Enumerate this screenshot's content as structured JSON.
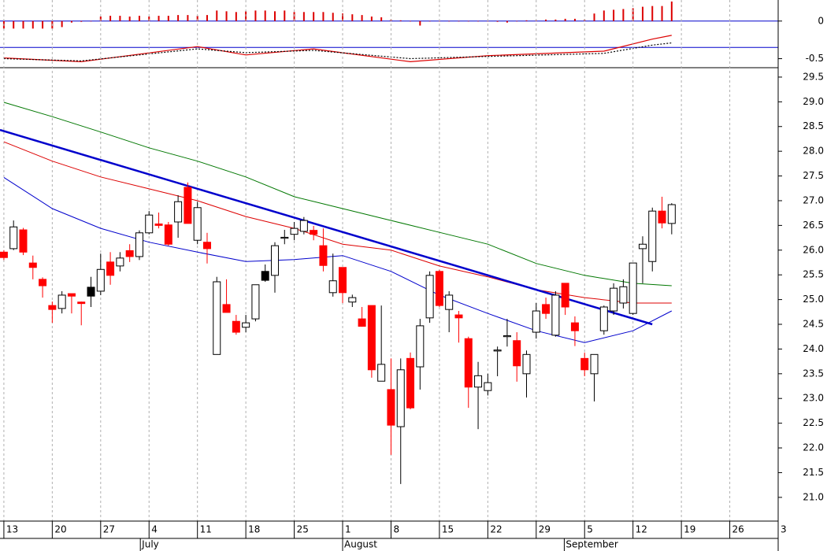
{
  "chart_data": [
    {
      "type": "macd",
      "xlim": [
        -0.4,
        80
      ],
      "ylim": [
        -0.62,
        0.28
      ],
      "yticks": [
        0,
        -0.5
      ],
      "hlines": [
        0,
        -0.35
      ],
      "hline_color": "#0000cc",
      "histogram": {
        "color": "#dd0000",
        "x": [
          0,
          1,
          2,
          3,
          4,
          5,
          6,
          7,
          8,
          9,
          10,
          11,
          12,
          13,
          14,
          15,
          16,
          17,
          18,
          19,
          20,
          21,
          22,
          23,
          24,
          25,
          26,
          27,
          28,
          29,
          30,
          31,
          32,
          33,
          34,
          35,
          36,
          37,
          38,
          39,
          40,
          41,
          42,
          43,
          44,
          45,
          46,
          47,
          48,
          49,
          50,
          51,
          52,
          53,
          54,
          55,
          56,
          57,
          58,
          59,
          60,
          61,
          62,
          63,
          64,
          65,
          66,
          67,
          68,
          69
        ],
        "values": [
          -0.1,
          -0.1,
          -0.1,
          -0.1,
          -0.1,
          -0.1,
          -0.08,
          -0.02,
          -0.01,
          0,
          0.06,
          0.07,
          0.07,
          0.06,
          0.07,
          0.06,
          0.07,
          0.07,
          0.08,
          0.08,
          0.07,
          0.08,
          0.14,
          0.13,
          0.12,
          0.13,
          0.14,
          0.14,
          0.13,
          0.14,
          0.12,
          0.12,
          0.12,
          0.12,
          0.11,
          0.1,
          0.09,
          0.08,
          0.06,
          0.05,
          0.02,
          0.01,
          0,
          -0.06,
          0,
          0,
          0,
          0,
          0,
          0,
          0,
          -0.01,
          -0.02,
          0,
          0.01,
          0.01,
          0.02,
          0.02,
          0.03,
          0.03,
          0.02,
          0.1,
          0.14,
          0.15,
          0.16,
          0.17,
          0.19,
          0.2,
          0.2,
          0.26
        ]
      },
      "series": [
        {
          "color": "#dd0000",
          "dash": false,
          "x": [
            0,
            8,
            20,
            25,
            32,
            42,
            50,
            62,
            67,
            69
          ],
          "values": [
            -0.49,
            -0.54,
            -0.34,
            -0.45,
            -0.37,
            -0.54,
            -0.46,
            -0.4,
            -0.24,
            -0.19
          ]
        },
        {
          "color": "#000000",
          "dash": true,
          "x": [
            0,
            8,
            20,
            25,
            32,
            42,
            50,
            62,
            67,
            69
          ],
          "values": [
            -0.5,
            -0.53,
            -0.37,
            -0.42,
            -0.39,
            -0.5,
            -0.47,
            -0.43,
            -0.32,
            -0.29
          ]
        }
      ]
    },
    {
      "type": "candlestick",
      "xlim": [
        -0.4,
        80
      ],
      "ylim": [
        20.52,
        29.69
      ],
      "yticks": [
        {
          "value": 21,
          "label": "21.0"
        },
        {
          "value": 21.5,
          "label": "21.5"
        },
        {
          "value": 22,
          "label": "22.0"
        },
        {
          "value": 22.5,
          "label": "22.5"
        },
        {
          "value": 23,
          "label": "23.0"
        },
        {
          "value": 23.5,
          "label": "23.5"
        },
        {
          "value": 24,
          "label": "24.0"
        },
        {
          "value": 24.5,
          "label": "24.5"
        },
        {
          "value": 25,
          "label": "25.0"
        },
        {
          "value": 25.5,
          "label": "25.5"
        },
        {
          "value": 26,
          "label": "26.0"
        },
        {
          "value": 26.5,
          "label": "26.5"
        },
        {
          "value": 27,
          "label": "27.0"
        },
        {
          "value": 27.5,
          "label": "27.5"
        },
        {
          "value": 28,
          "label": "28.0"
        },
        {
          "value": 28.5,
          "label": "28.5"
        },
        {
          "value": 29,
          "label": "29.0"
        },
        {
          "value": 29.5,
          "label": "29.5"
        }
      ],
      "xticks": [
        {
          "value": 0,
          "label": "13"
        },
        {
          "value": 5,
          "label": "20"
        },
        {
          "value": 10,
          "label": "27"
        },
        {
          "value": 15,
          "label": "4"
        },
        {
          "value": 20,
          "label": "11"
        },
        {
          "value": 25,
          "label": "18"
        },
        {
          "value": 30,
          "label": "25"
        },
        {
          "value": 35,
          "label": "1"
        },
        {
          "value": 40,
          "label": "8"
        },
        {
          "value": 45,
          "label": "15"
        },
        {
          "value": 50,
          "label": "22"
        },
        {
          "value": 55,
          "label": "29"
        },
        {
          "value": 60,
          "label": "5"
        },
        {
          "value": 65,
          "label": "12"
        },
        {
          "value": 70,
          "label": "19"
        },
        {
          "value": 75,
          "label": "26"
        },
        {
          "value": 80,
          "label": "3"
        }
      ],
      "month_ticks": [
        {
          "value": 14.1,
          "label": "July"
        },
        {
          "value": 35,
          "label": "August"
        },
        {
          "value": 57.9,
          "label": "September"
        }
      ],
      "grid": true,
      "x": [
        0,
        1,
        2,
        3,
        4,
        5,
        6,
        7,
        8,
        9,
        10,
        11,
        12,
        13,
        14,
        15,
        16,
        17,
        18,
        19,
        20,
        21,
        22,
        23,
        24,
        25,
        26,
        27,
        28,
        29,
        30,
        31,
        32,
        33,
        34,
        35,
        36,
        37,
        38,
        39,
        40,
        41,
        42,
        43,
        44,
        45,
        46,
        47,
        48,
        49,
        50,
        51,
        52,
        53,
        54,
        55,
        56,
        57,
        58,
        59,
        60,
        61,
        62,
        63,
        64,
        65,
        66,
        67,
        68,
        69
      ],
      "open": [
        25.96,
        26.03,
        26.41,
        25.74,
        25.41,
        24.88,
        24.82,
        25.12,
        24.95,
        25.07,
        25.17,
        25.76,
        25.68,
        25.99,
        25.87,
        26.35,
        26.53,
        26.51,
        26.57,
        27.27,
        26.2,
        26.16,
        23.89,
        24.9,
        24.56,
        24.44,
        24.61,
        25.39,
        25.49,
        26.24,
        26.32,
        26.38,
        26.4,
        26.09,
        25.14,
        25.65,
        24.95,
        24.61,
        24.88,
        23.35,
        23.18,
        22.43,
        23.81,
        23.64,
        24.63,
        25.57,
        24.8,
        24.69,
        24.21,
        23.23,
        23.16,
        23.96,
        24.25,
        24.17,
        23.5,
        24.34,
        24.9,
        24.28,
        25.33,
        24.53,
        23.81,
        23.5,
        24.37,
        24.77,
        24.93,
        24.72,
        26.03,
        25.77,
        26.79,
        26.54
      ],
      "high": [
        26.0,
        26.6,
        26.45,
        25.89,
        25.45,
        24.96,
        25.17,
        25.12,
        24.96,
        25.46,
        25.93,
        25.96,
        25.96,
        26.12,
        26.4,
        26.79,
        26.76,
        26.57,
        27.11,
        27.37,
        26.98,
        26.35,
        25.46,
        25.41,
        24.69,
        24.69,
        25.3,
        25.71,
        26.16,
        26.41,
        26.57,
        26.67,
        26.49,
        26.44,
        25.93,
        25.65,
        25.1,
        24.85,
        24.88,
        24.88,
        23.81,
        23.81,
        23.93,
        24.61,
        25.57,
        25.6,
        25.17,
        24.77,
        24.25,
        23.74,
        23.5,
        24.05,
        24.61,
        24.34,
        23.97,
        24.93,
        25.04,
        25.17,
        25.33,
        24.66,
        23.93,
        23.89,
        24.88,
        25.33,
        25.41,
        25.74,
        26.28,
        26.86,
        27.08,
        26.95
      ],
      "low": [
        25.8,
        26.0,
        25.9,
        25.41,
        25.04,
        24.53,
        24.72,
        24.72,
        24.48,
        24.85,
        25.09,
        25.3,
        25.57,
        25.76,
        25.8,
        26.32,
        26.44,
        26.09,
        26.25,
        26.54,
        26.12,
        25.73,
        23.89,
        24.74,
        24.29,
        24.34,
        24.56,
        25.36,
        25.14,
        26.12,
        26.2,
        26.32,
        26.2,
        25.57,
        25.06,
        24.93,
        24.85,
        24.45,
        23.42,
        23.35,
        21.86,
        21.27,
        22.78,
        23.18,
        24.53,
        24.85,
        24.34,
        24.13,
        22.81,
        22.38,
        23.06,
        23.45,
        24.05,
        23.34,
        23.02,
        24.21,
        24.61,
        24.25,
        24.69,
        24.06,
        23.45,
        22.94,
        24.29,
        24.69,
        24.82,
        24.69,
        25.33,
        25.57,
        26.44,
        26.32
      ],
      "close": [
        25.85,
        26.47,
        25.96,
        25.65,
        25.28,
        24.8,
        25.09,
        25.07,
        24.92,
        25.25,
        25.61,
        25.49,
        25.84,
        25.87,
        26.35,
        26.71,
        26.5,
        26.12,
        26.98,
        26.54,
        26.86,
        26.03,
        25.36,
        24.74,
        24.34,
        24.53,
        25.3,
        25.57,
        26.09,
        26.26,
        26.44,
        26.6,
        26.32,
        25.69,
        25.38,
        25.14,
        25.04,
        24.46,
        23.58,
        23.69,
        22.46,
        23.58,
        22.81,
        24.47,
        25.49,
        24.88,
        25.09,
        24.63,
        23.23,
        23.46,
        23.32,
        23.98,
        24.27,
        23.66,
        23.89,
        24.77,
        24.72,
        25.09,
        24.85,
        24.37,
        23.58,
        23.89,
        24.85,
        25.23,
        25.26,
        25.74,
        26.12,
        26.79,
        26.55,
        26.92
      ],
      "colors": [
        "#ff0000",
        "#ffffff",
        "#ff0000",
        "#ff0000",
        "#ff0000",
        "#ff0000",
        "#ffffff",
        "#ff0000",
        "#ff0000",
        "#000000",
        "#ffffff",
        "#ff0000",
        "#ffffff",
        "#ff0000",
        "#ffffff",
        "#ffffff",
        "#ff0000",
        "#ff0000",
        "#ffffff",
        "#ff0000",
        "#ffffff",
        "#ff0000",
        "#ffffff",
        "#ff0000",
        "#ff0000",
        "#ffffff",
        "#ffffff",
        "#000000",
        "#ffffff",
        "#ffffff",
        "#ffffff",
        "#ffffff",
        "#ff0000",
        "#ff0000",
        "#ffffff",
        "#ff0000",
        "#ffffff",
        "#ff0000",
        "#ff0000",
        "#ffffff",
        "#ff0000",
        "#ffffff",
        "#ff0000",
        "#ffffff",
        "#ffffff",
        "#ff0000",
        "#ffffff",
        "#ff0000",
        "#ff0000",
        "#ffffff",
        "#ffffff",
        "#ffffff",
        "#ffffff",
        "#ff0000",
        "#ffffff",
        "#ffffff",
        "#ff0000",
        "#ffffff",
        "#ff0000",
        "#ff0000",
        "#ff0000",
        "#ffffff",
        "#ffffff",
        "#ffffff",
        "#ffffff",
        "#ffffff",
        "#ffffff",
        "#ffffff",
        "#ff0000",
        "#ffffff"
      ],
      "lines": [
        {
          "color": "#0000cc",
          "width": 1,
          "x": [
            0,
            5,
            10,
            15,
            20,
            25,
            30,
            35,
            40,
            45,
            50,
            55,
            60,
            65,
            69
          ],
          "values": [
            27.47,
            26.84,
            26.44,
            26.16,
            25.96,
            25.77,
            25.81,
            25.89,
            25.57,
            25.09,
            24.72,
            24.37,
            24.13,
            24.37,
            24.77
          ]
        },
        {
          "color": "#dd0000",
          "width": 1,
          "x": [
            0,
            5,
            10,
            15,
            20,
            25,
            30,
            35,
            40,
            45,
            50,
            55,
            60,
            65,
            69
          ],
          "values": [
            28.19,
            27.8,
            27.48,
            27.24,
            27.0,
            26.68,
            26.44,
            26.12,
            26.0,
            25.68,
            25.46,
            25.2,
            25.04,
            24.93,
            24.93
          ]
        },
        {
          "color": "#007700",
          "width": 1,
          "x": [
            0,
            5,
            10,
            15,
            20,
            25,
            30,
            35,
            40,
            45,
            50,
            55,
            60,
            65,
            69
          ],
          "values": [
            28.99,
            28.7,
            28.39,
            28.07,
            27.8,
            27.48,
            27.08,
            26.84,
            26.6,
            26.36,
            26.12,
            25.73,
            25.49,
            25.33,
            25.28
          ]
        },
        {
          "color": "#0000cc",
          "width": 2.5,
          "x": [
            -0.4,
            67
          ],
          "values": [
            28.43,
            24.5
          ]
        }
      ]
    }
  ]
}
